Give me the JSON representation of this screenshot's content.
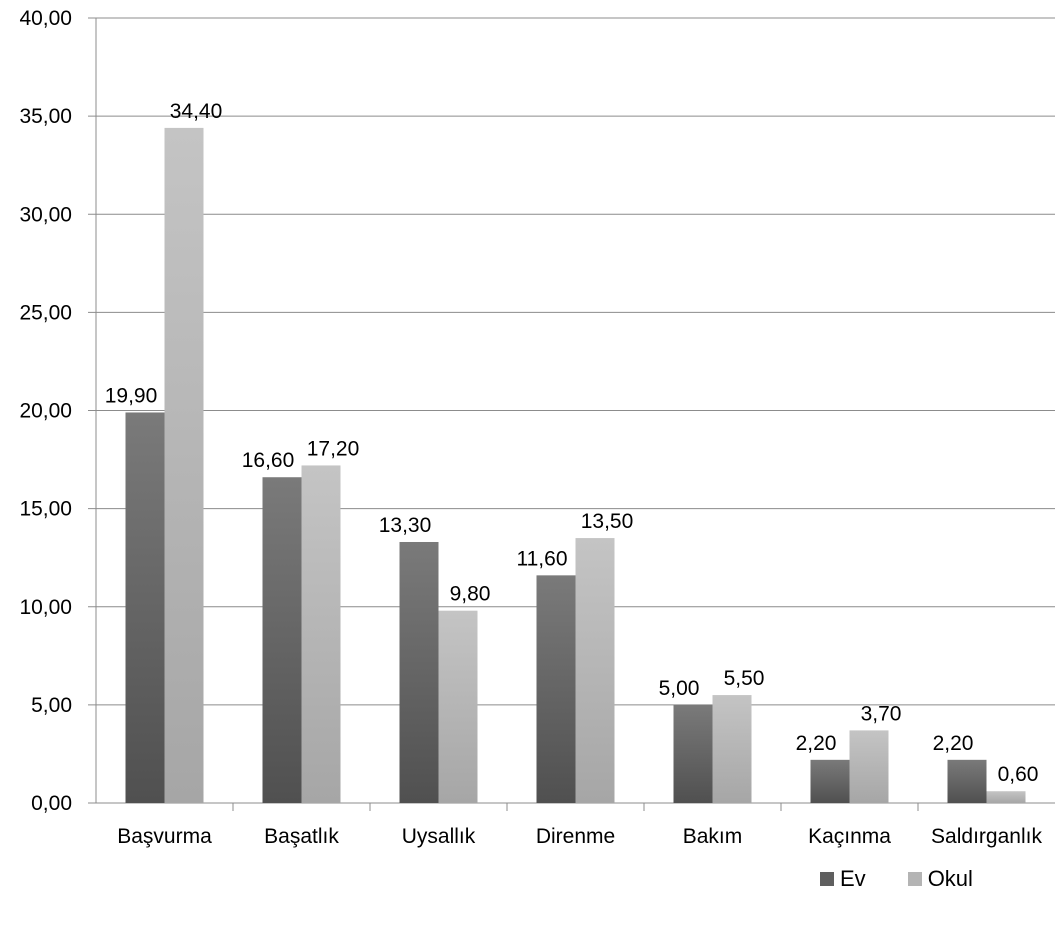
{
  "chart_data": {
    "type": "bar",
    "title": "",
    "xlabel": "",
    "ylabel": "",
    "categories": [
      "Başvurma",
      "Başatlık",
      "Uysallık",
      "Direnme",
      "Bakım",
      "Kaçınma",
      "Saldırganlık"
    ],
    "series": [
      {
        "name": "Ev",
        "color": "#5f5f5f",
        "values": [
          19.9,
          16.6,
          13.3,
          11.6,
          5.0,
          2.2,
          2.2
        ],
        "labels": [
          "19,90",
          "16,60",
          "13,30",
          "11,60",
          "5,00",
          "2,20",
          "2,20"
        ]
      },
      {
        "name": "Okul",
        "color": "#b4b4b4",
        "values": [
          34.4,
          17.2,
          9.8,
          13.5,
          5.5,
          3.7,
          0.6
        ],
        "labels": [
          "34,40",
          "17,20",
          "9,80",
          "13,50",
          "5,50",
          "3,70",
          "0,60"
        ]
      }
    ],
    "ylim": [
      0,
      40
    ],
    "yticks": [
      "0,00",
      "5,00",
      "10,00",
      "15,00",
      "20,00",
      "25,00",
      "30,00",
      "35,00",
      "40,00"
    ],
    "grid": true,
    "legend_position": "bottom-right"
  }
}
